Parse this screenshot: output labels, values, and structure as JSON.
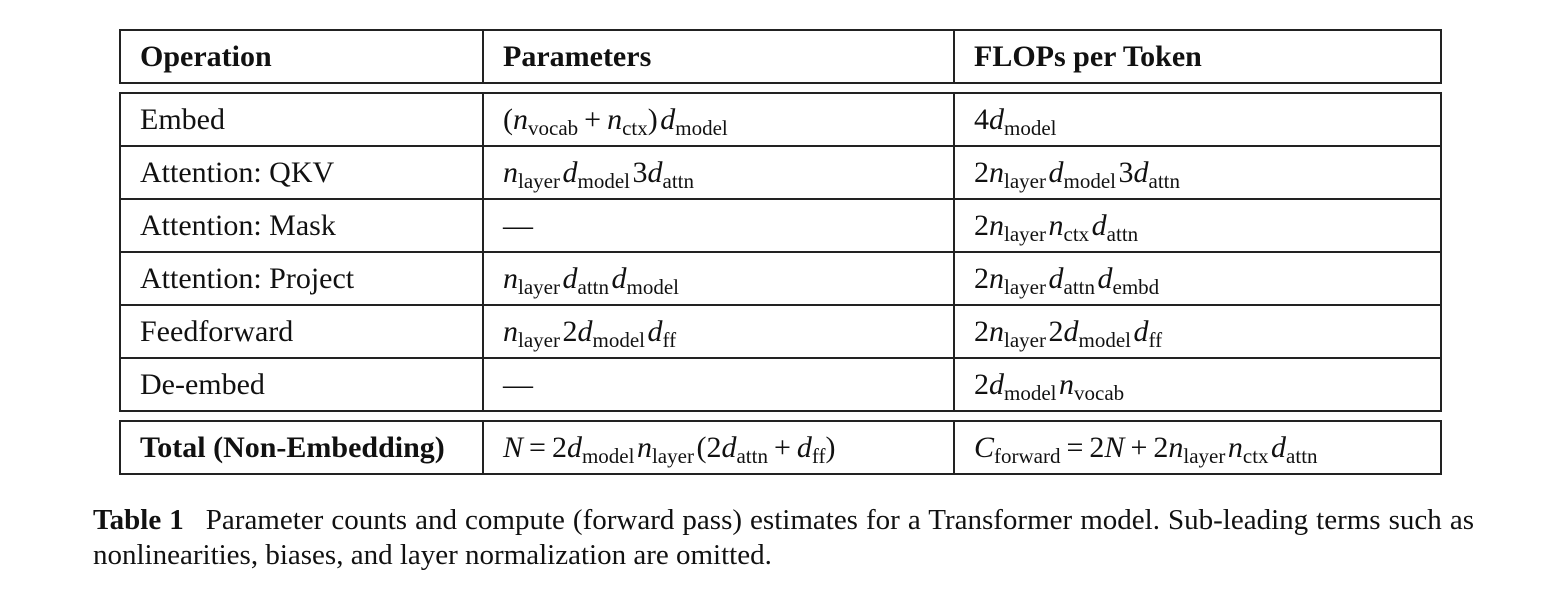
{
  "table": {
    "headers": [
      "Operation",
      "Parameters",
      "FLOPs per Token"
    ],
    "rows": [
      {
        "operation": "Embed",
        "parameters": "(n_vocab + n_ctx) d_model",
        "flops": "4d_model"
      },
      {
        "operation": "Attention: QKV",
        "parameters": "n_layer d_model 3d_attn",
        "flops": "2n_layer d_model 3d_attn"
      },
      {
        "operation": "Attention: Mask",
        "parameters": "—",
        "flops": "2n_layer n_ctx d_attn"
      },
      {
        "operation": "Attention: Project",
        "parameters": "n_layer d_attn d_model",
        "flops": "2n_layer d_attn d_embd"
      },
      {
        "operation": "Feedforward",
        "parameters": "n_layer 2d_model d_ff",
        "flops": "2n_layer 2d_model d_ff"
      },
      {
        "operation": "De-embed",
        "parameters": "—",
        "flops": "2d_model n_vocab"
      }
    ],
    "total": {
      "operation": "Total (Non-Embedding)",
      "parameters": "N = 2d_model n_layer (2d_attn + d_ff)",
      "flops": "C_forward = 2N + 2n_layer n_ctx d_attn"
    }
  },
  "caption": {
    "label": "Table 1",
    "text": "Parameter counts and compute (forward pass) estimates for a Transformer model.  Sub-leading terms such as nonlinearities, biases, and layer normalization are omitted."
  }
}
